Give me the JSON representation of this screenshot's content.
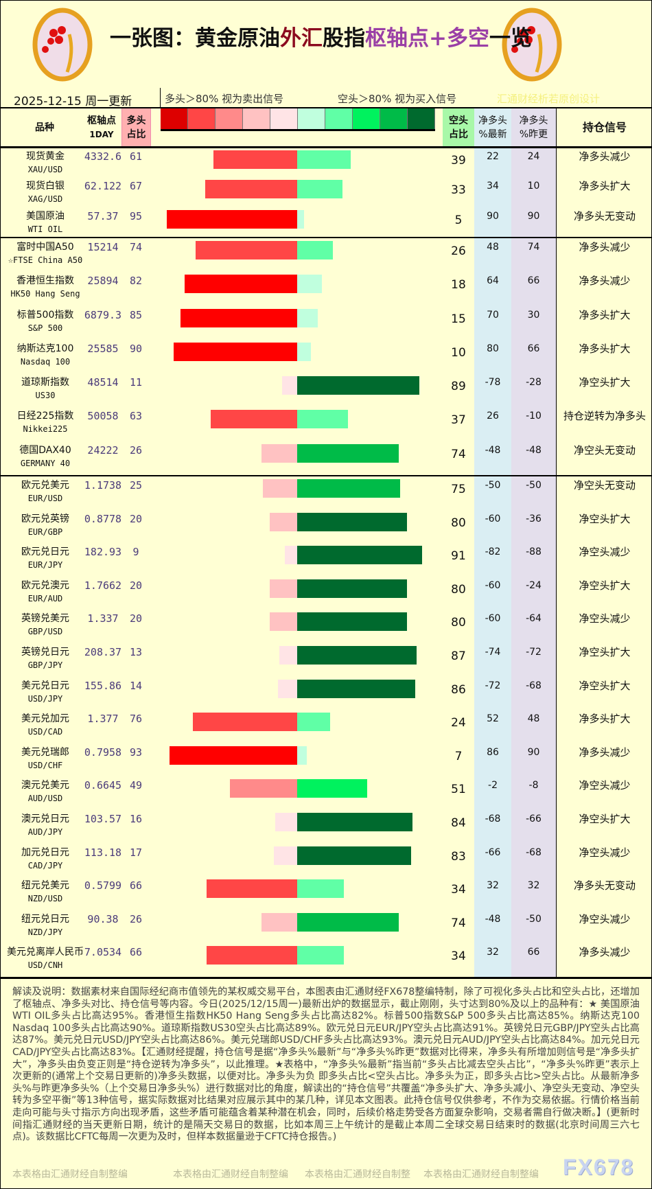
{
  "header": {
    "title_part1": "一张图：黄金原油",
    "title_part2": "外汇",
    "title_part3": "股指",
    "title_part4": "枢轴点+多空",
    "title_part5": "一览",
    "logo_text": "fx678 yly",
    "date": "2025-12-15 周一更新",
    "legend_long": "多头＞80% 视为卖出信号",
    "legend_short": "空头＞80% 视为买入信号",
    "credit": "汇通财经析若原创设计"
  },
  "columns": {
    "name": "品种",
    "pivot": "枢轴点",
    "pivot_sub": "1DAY",
    "long": "多头",
    "long_sub": "占比",
    "short": "空头",
    "short_sub": "占比",
    "net_latest": "净多头",
    "net_latest_sub": "%最新",
    "net_prev": "净多头",
    "net_prev_sub": "%昨更",
    "signal": "持仓信号"
  },
  "colors": {
    "long_scale": [
      "#dd0000",
      "#ff4646",
      "#ff8a8a",
      "#ffc2c2",
      "#ffe4e6"
    ],
    "short_scale": [
      "#c0ffde",
      "#60ffa6",
      "#00f25e",
      "#00bb48",
      "#006a2e"
    ],
    "long_bar": {
      "ge80": "#ff0000",
      "ge60": "#ff4646",
      "ge40": "#ff8a8a",
      "ge20": "#ffc2c2",
      "lt20": "#ffe4e6"
    },
    "short_bar": {
      "ge80": "#006a2e",
      "ge60": "#00bb48",
      "ge40": "#00f25e",
      "ge20": "#60ffa6",
      "lt20": "#c0ffde"
    }
  },
  "groups": [
    [
      {
        "name": "现货黄金",
        "code": "XAU/USD",
        "pivot": "4332.6",
        "long": 61,
        "short": 39,
        "net_latest": "22",
        "net_prev": "24",
        "signal": "净多头减少"
      },
      {
        "name": "现货白银",
        "code": "XAG/USD",
        "pivot": "62.122",
        "long": 67,
        "short": 33,
        "net_latest": "34",
        "net_prev": "10",
        "signal": "净多头扩大"
      },
      {
        "name": "美国原油",
        "code": "WTI OIL",
        "pivot": "57.37",
        "long": 95,
        "short": 5,
        "net_latest": "90",
        "net_prev": "90",
        "signal": "净多头无变动"
      }
    ],
    [
      {
        "name": "富时中国A50",
        "code": "☆FTSE China A50",
        "pivot": "15214",
        "long": 74,
        "short": 26,
        "net_latest": "48",
        "net_prev": "74",
        "signal": "净多头减少"
      },
      {
        "name": "香港恒生指数",
        "code": "HK50 Hang Seng",
        "pivot": "25894",
        "long": 82,
        "short": 18,
        "net_latest": "64",
        "net_prev": "66",
        "signal": "净多头减少"
      },
      {
        "name": "标普500指数",
        "code": "S&P 500",
        "pivot": "6879.3",
        "long": 85,
        "short": 15,
        "net_latest": "70",
        "net_prev": "30",
        "signal": "净多头扩大"
      },
      {
        "name": "纳斯达克100",
        "code": "Nasdaq 100",
        "pivot": "25585",
        "long": 90,
        "short": 10,
        "net_latest": "80",
        "net_prev": "66",
        "signal": "净多头扩大"
      },
      {
        "name": "道琼斯指数",
        "code": "US30",
        "pivot": "48514",
        "long": 11,
        "short": 89,
        "net_latest": "-78",
        "net_prev": "-28",
        "signal": "净空头扩大"
      },
      {
        "name": "日经225指数",
        "code": "Nikkei225",
        "pivot": "50058",
        "long": 63,
        "short": 37,
        "net_latest": "26",
        "net_prev": "-10",
        "signal": "持仓逆转为净多头"
      },
      {
        "name": "德国DAX40",
        "code": "GERMANY 40",
        "pivot": "24222",
        "long": 26,
        "short": 74,
        "net_latest": "-48",
        "net_prev": "-48",
        "signal": "净空头无变动"
      }
    ],
    [
      {
        "name": "欧元兑美元",
        "code": "EUR/USD",
        "pivot": "1.1738",
        "long": 25,
        "short": 75,
        "net_latest": "-50",
        "net_prev": "-50",
        "signal": "净空头无变动"
      },
      {
        "name": "欧元兑英镑",
        "code": "EUR/GBP",
        "pivot": "0.8778",
        "long": 20,
        "short": 80,
        "net_latest": "-60",
        "net_prev": "-36",
        "signal": "净空头扩大"
      },
      {
        "name": "欧元兑日元",
        "code": "EUR/JPY",
        "pivot": "182.93",
        "long": 9,
        "short": 91,
        "net_latest": "-82",
        "net_prev": "-88",
        "signal": "净空头减少"
      },
      {
        "name": "欧元兑澳元",
        "code": "EUR/AUD",
        "pivot": "1.7662",
        "long": 20,
        "short": 80,
        "net_latest": "-60",
        "net_prev": "-24",
        "signal": "净空头扩大"
      },
      {
        "name": "英镑兑美元",
        "code": "GBP/USD",
        "pivot": "1.337",
        "long": 20,
        "short": 80,
        "net_latest": "-60",
        "net_prev": "-64",
        "signal": "净空头减少"
      },
      {
        "name": "英镑兑日元",
        "code": "GBP/JPY",
        "pivot": "208.37",
        "long": 13,
        "short": 87,
        "net_latest": "-74",
        "net_prev": "-72",
        "signal": "净空头扩大"
      },
      {
        "name": "美元兑日元",
        "code": "USD/JPY",
        "pivot": "155.86",
        "long": 14,
        "short": 86,
        "net_latest": "-72",
        "net_prev": "-68",
        "signal": "净空头扩大"
      },
      {
        "name": "美元兑加元",
        "code": "USD/CAD",
        "pivot": "1.377",
        "long": 76,
        "short": 24,
        "net_latest": "52",
        "net_prev": "48",
        "signal": "净多头扩大"
      },
      {
        "name": "美元兑瑞郎",
        "code": "USD/CHF",
        "pivot": "0.7958",
        "long": 93,
        "short": 7,
        "net_latest": "86",
        "net_prev": "90",
        "signal": "净多头减少"
      },
      {
        "name": "澳元兑美元",
        "code": "AUD/USD",
        "pivot": "0.6645",
        "long": 49,
        "short": 51,
        "net_latest": "-2",
        "net_prev": "-8",
        "signal": "净空头减少"
      },
      {
        "name": "澳元兑日元",
        "code": "AUD/JPY",
        "pivot": "103.57",
        "long": 16,
        "short": 84,
        "net_latest": "-68",
        "net_prev": "-66",
        "signal": "净空头扩大"
      },
      {
        "name": "加元兑日元",
        "code": "CAD/JPY",
        "pivot": "113.18",
        "long": 17,
        "short": 83,
        "net_latest": "-66",
        "net_prev": "-68",
        "signal": "净空头减少"
      },
      {
        "name": "纽元兑美元",
        "code": "NZD/USD",
        "pivot": "0.5799",
        "long": 66,
        "short": 34,
        "net_latest": "32",
        "net_prev": "32",
        "signal": "净多头无变动"
      },
      {
        "name": "纽元兑日元",
        "code": "NZD/JPY",
        "pivot": "90.38",
        "long": 26,
        "short": 74,
        "net_latest": "-48",
        "net_prev": "-50",
        "signal": "净空头减少"
      },
      {
        "name": "美元兑离岸人民币",
        "code": "USD/CNH",
        "pivot": "7.0534",
        "long": 66,
        "short": 34,
        "net_latest": "32",
        "net_prev": "66",
        "signal": "净多头减少"
      }
    ]
  ],
  "footer": {
    "text": "解读及说明：数据素材来自国际经纪商市值领先的某权威交易平台，本图表由汇通财经FX678整编特制，除了可视化多头占比和空头占比，还增加了枢轴点、净多头对比、持仓信号等内容。今日(2025/12/15周一)最新出炉的数据显示，截止刚刚，头寸达到80%及以上的品种有：★ 美国原油WTI OIL多头占比高达95%。香港恒生指数HK50 Hang Seng多头占比高达82%。标普500指数S&P 500多头占比高达85%。纳斯达克100 Nasdaq 100多头占比高达90%。道琼斯指数US30空头占比高达89%。欧元兑日元EUR/JPY空头占比高达91%。英镑兑日元GBP/JPY空头占比高达87%。美元兑日元USD/JPY空头占比高达86%。美元兑瑞郎USD/CHF多头占比高达93%。澳元兑日元AUD/JPY空头占比高达84%。加元兑日元CAD/JPY空头占比高达83%。【汇通财经提醒，持仓信号是据“净多头%最新”与“净多头%昨更”数据对比得来，净多头有所增加则信号是“净多头扩大”，净多头由负变正则是“持仓逆转为净多头”，以此推理。★表格中，“净多头%最新”指当前“多头占比减去空头占比”，“净多头%昨更”表示上次更新的(通常上个交易日更新的)净多头数据，以便对比。净多头为负 即多头占比<空头占比。净多头为正，即多头占比>空头占比。从最新净多头%与昨更净多头%（上个交易日净多头%）进行数据对比的角度，解读出的“持仓信号”共覆盖“净多头扩大、净多头减小、净空头无变动、净空头转为多空平衡”等13种信号，据实际数据对比结果对应展示其中的某几种，详见本文图表。此持仓信号仅供参考，不作为交易依据。行情价格当前走向可能与头寸指示方向出现矛盾，这些矛盾可能蕴含着某种潜在机会，同时，后续价格走势受各方面复杂影响，交易者需自行做决断。】(更新时间指汇通财经的当天更新日期，统计的是隔天交易日的数据，比如本周三上午统计的是截止本周二全球交易日结束时的数据(北京时间周三六七点)。该数据比CFTC每周一次更为及时，但样本数据量逊于CFTC持仓报告。)",
    "watermark1": "本表格由汇通财经自制整编",
    "watermark2": "本表格由汇通财经自制整编",
    "watermark3": "本表格由汇通财经自制整",
    "watermark4": "本表格由汇通财经自制整编",
    "brand": "FX678"
  }
}
